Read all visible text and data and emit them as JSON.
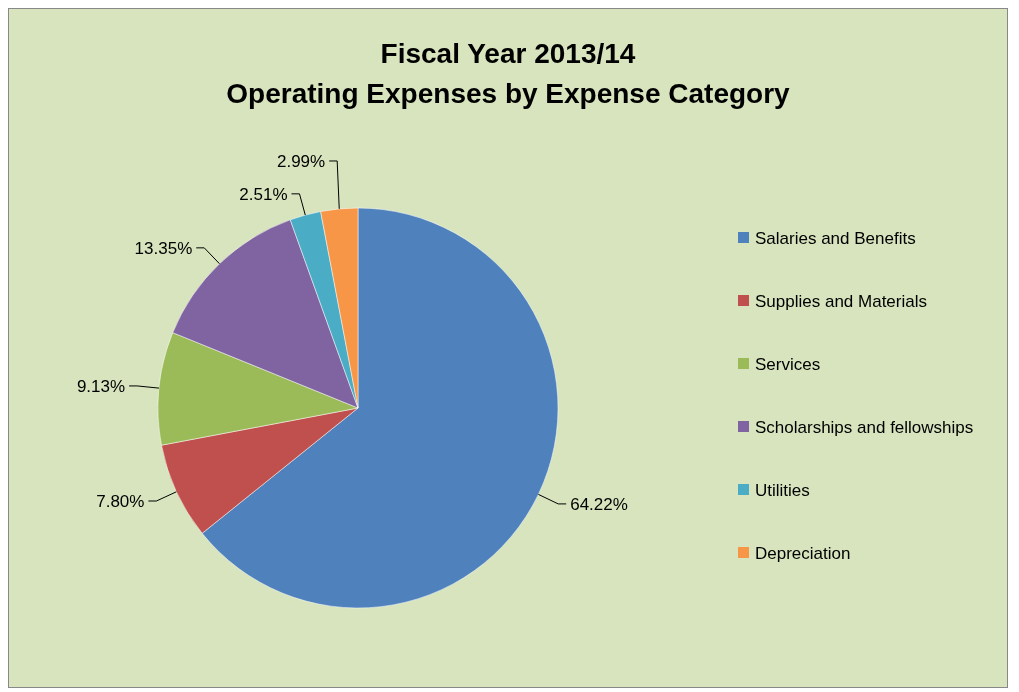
{
  "chart_data": {
    "type": "pie",
    "title": "Fiscal Year 2013/14",
    "subtitle": "Operating Expenses by Expense Category",
    "categories": [
      "Salaries and Benefits",
      "Supplies and Materials",
      "Services",
      "Scholarships and fellowships",
      "Utilities",
      "Depreciation"
    ],
    "values": [
      64.22,
      7.8,
      9.13,
      13.35,
      2.51,
      2.99
    ],
    "value_labels": [
      "64.22%",
      "7.80%",
      "9.13%",
      "13.35%",
      "2.51%",
      "2.99%"
    ],
    "colors": [
      "#4f81bd",
      "#c0504d",
      "#9bbb59",
      "#8064a2",
      "#4bacc6",
      "#f79646"
    ],
    "legend": "right"
  }
}
